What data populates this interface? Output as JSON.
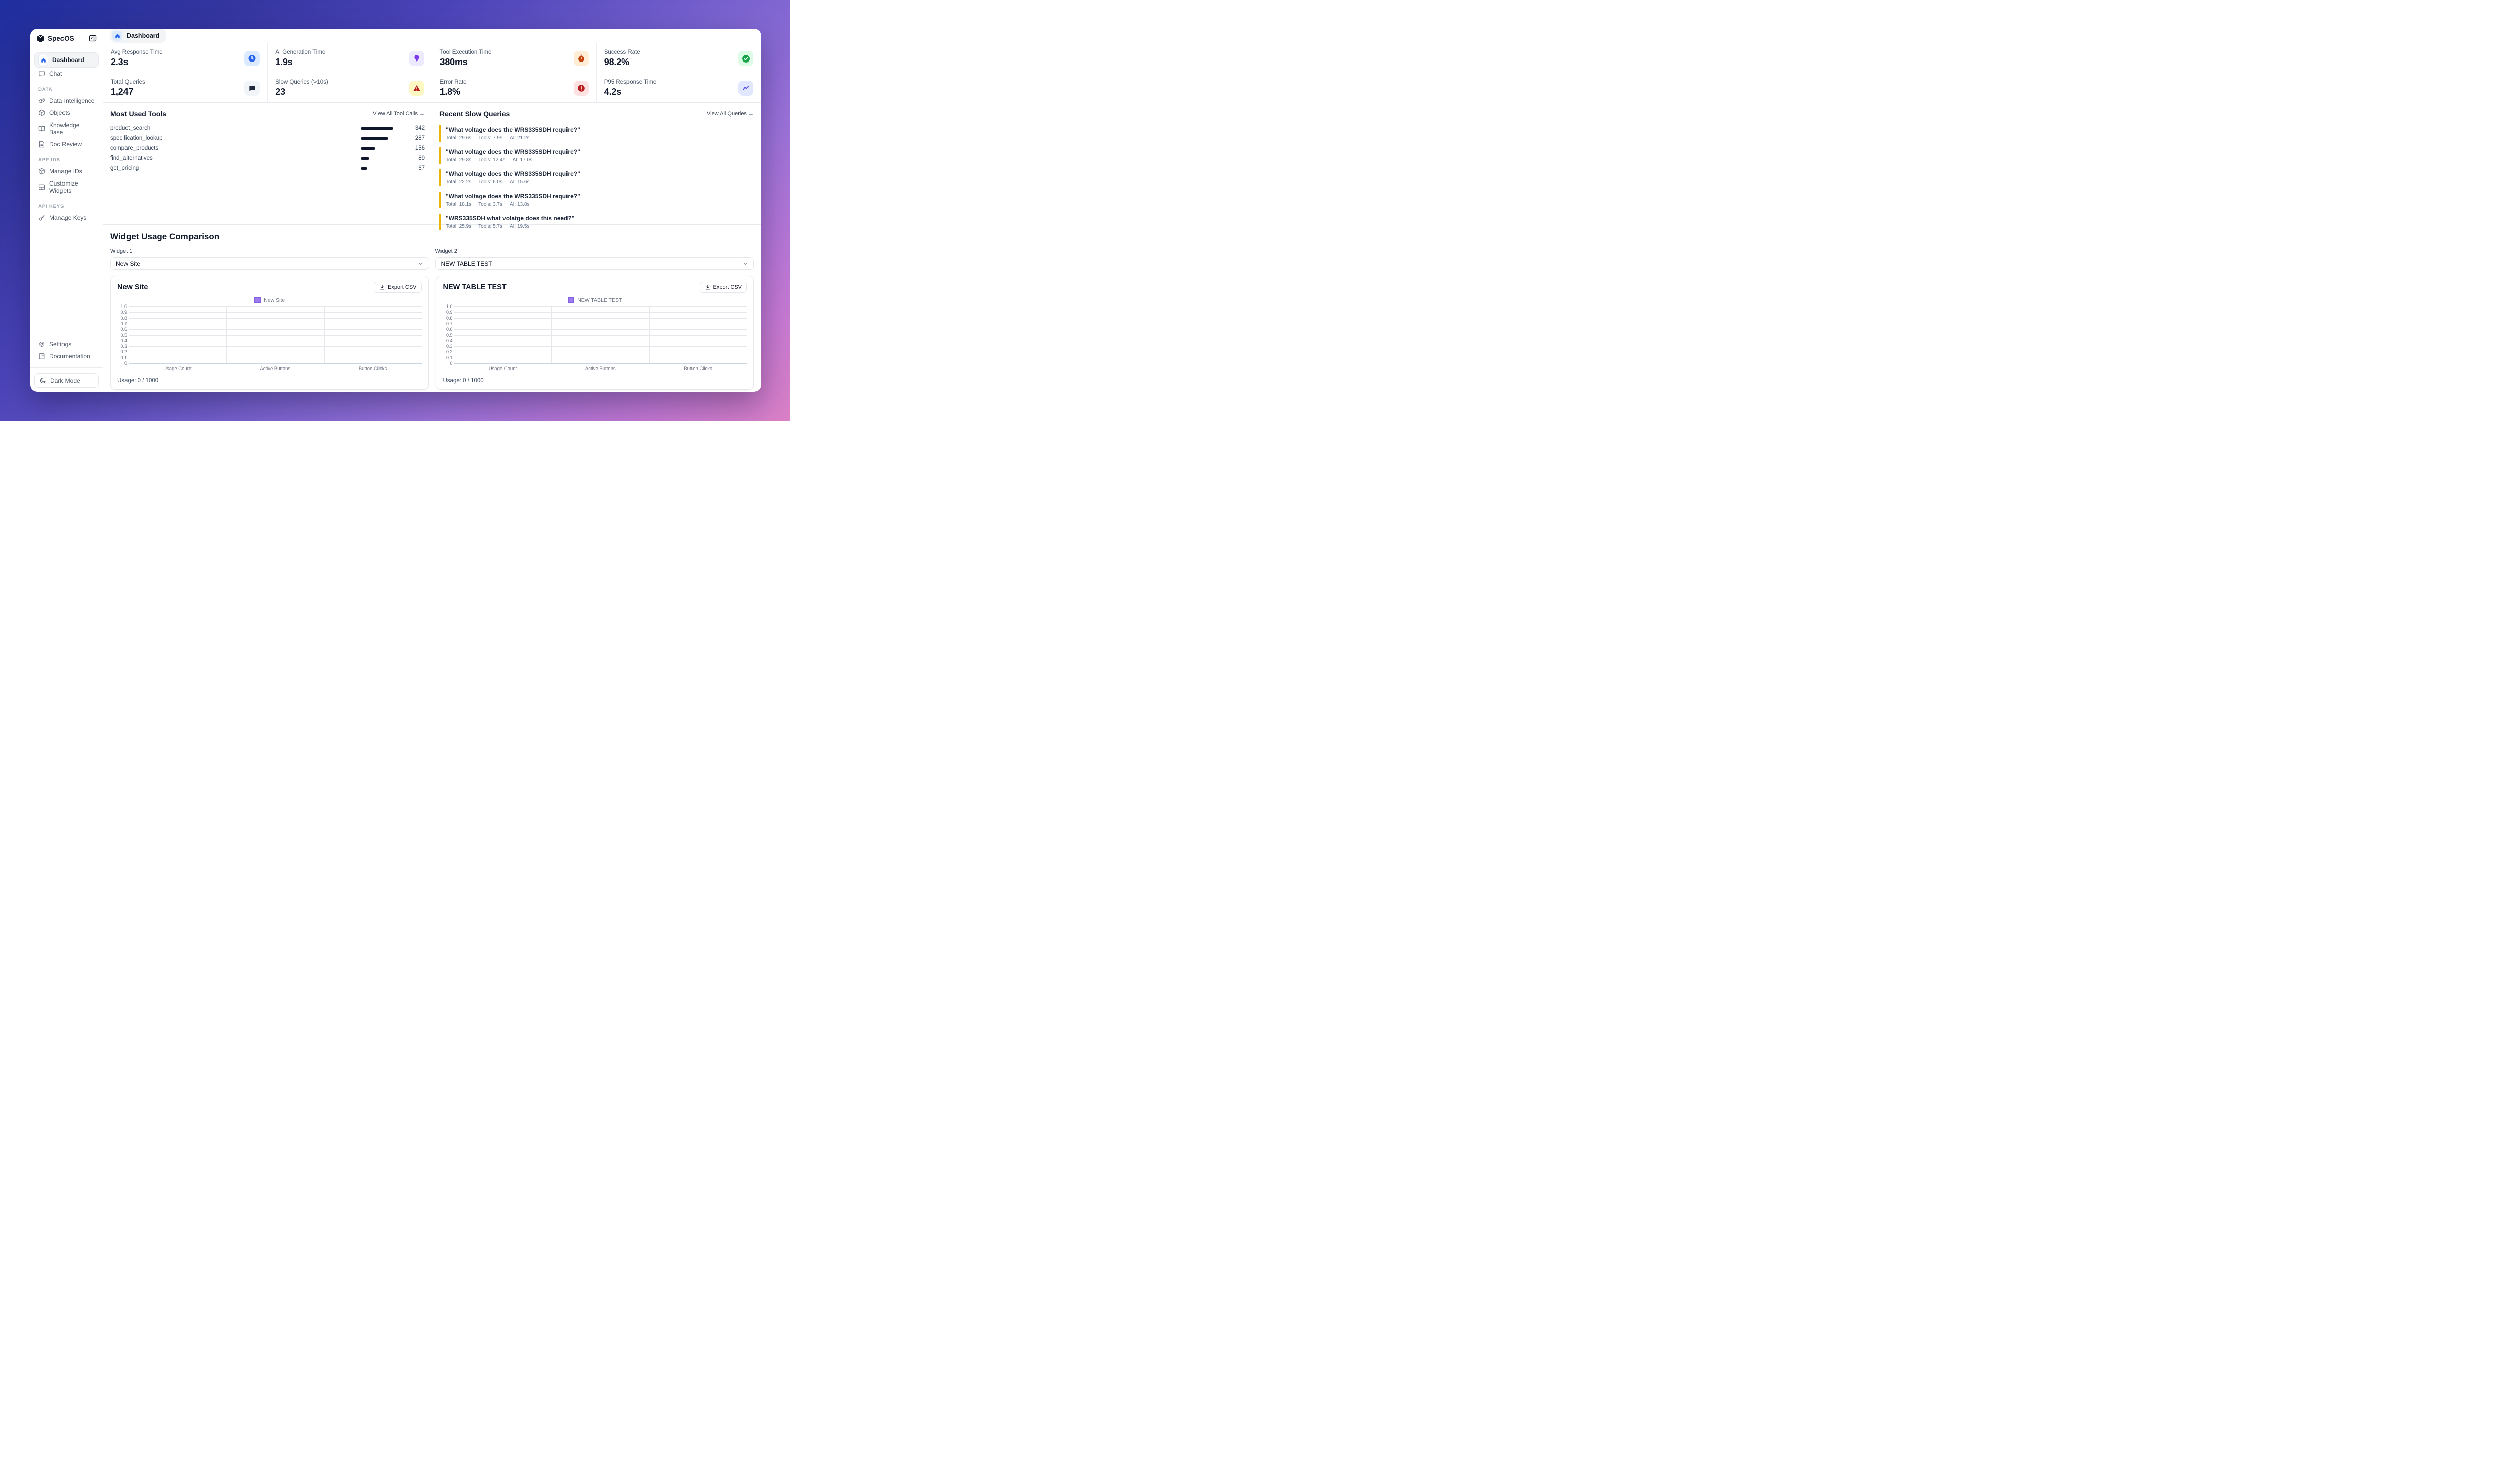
{
  "app": {
    "name": "SpecOS"
  },
  "header": {
    "breadcrumb": "Dashboard"
  },
  "sidebar": {
    "nav": [
      {
        "label": "Dashboard",
        "active": true
      },
      {
        "label": "Chat",
        "active": false
      }
    ],
    "sections": [
      {
        "title": "DATA",
        "items": [
          {
            "label": "Data Intelligence"
          },
          {
            "label": "Objects"
          },
          {
            "label": "Knowledge Base"
          },
          {
            "label": "Doc Review"
          }
        ]
      },
      {
        "title": "APP IDS",
        "items": [
          {
            "label": "Manage IDs"
          },
          {
            "label": "Customize Widgets"
          }
        ]
      },
      {
        "title": "API KEYS",
        "items": [
          {
            "label": "Manage Keys"
          }
        ]
      }
    ],
    "footer_items": [
      {
        "label": "Settings"
      },
      {
        "label": "Documentation"
      }
    ],
    "dark_mode_label": "Dark Mode"
  },
  "metrics": [
    {
      "label": "Avg Response Time",
      "value": "2.3s",
      "icon": "clock",
      "icon_bg": "#dbeafe",
      "icon_color": "#2563eb"
    },
    {
      "label": "AI Generation Time",
      "value": "1.9s",
      "icon": "lightbulb",
      "icon_bg": "#ede9fe",
      "icon_color": "#7c3aed"
    },
    {
      "label": "Tool Execution Time",
      "value": "380ms",
      "icon": "stopwatch",
      "icon_bg": "#ffedd5",
      "icon_color": "#c2410c"
    },
    {
      "label": "Success Rate",
      "value": "98.2%",
      "icon": "check-circle",
      "icon_bg": "#dcfce7",
      "icon_color": "#16a34a"
    },
    {
      "label": "Total Queries",
      "value": "1,247",
      "icon": "chat-bubble",
      "icon_bg": "#f1f5f9",
      "icon_color": "#1e293b"
    },
    {
      "label": "Slow Queries (>10s)",
      "value": "23",
      "icon": "warning-triangle",
      "icon_bg": "#fef9c3",
      "icon_color": "#b91c1c"
    },
    {
      "label": "Error Rate",
      "value": "1.8%",
      "icon": "error-circle",
      "icon_bg": "#fee2e2",
      "icon_color": "#b91c1c"
    },
    {
      "label": "P95 Response Time",
      "value": "4.2s",
      "icon": "trend-line",
      "icon_bg": "#e0e7ff",
      "icon_color": "#4f46e5"
    }
  ],
  "tools": {
    "title": "Most Used Tools",
    "link": "View All Tool Calls →",
    "items": [
      {
        "name": "product_search",
        "count": 342
      },
      {
        "name": "specification_lookup",
        "count": 287
      },
      {
        "name": "compare_products",
        "count": 156
      },
      {
        "name": "find_alternatives",
        "count": 89
      },
      {
        "name": "get_pricing",
        "count": 67
      }
    ],
    "bar_color": "#0f172a"
  },
  "slow_queries": {
    "title": "Recent Slow Queries",
    "link": "View All Queries →",
    "accent_color": "#eab308",
    "meta_labels": {
      "total": "Total:",
      "tools": "Tools:",
      "ai": "AI:"
    },
    "items": [
      {
        "text": "\"What voltage does the WRS335SDH require?\"",
        "total": "29.6s",
        "tools": "7.9s",
        "ai": "21.2s"
      },
      {
        "text": "\"What voltage does the WRS335SDH require?\"",
        "total": "29.8s",
        "tools": "12.4s",
        "ai": "17.0s"
      },
      {
        "text": "\"What voltage does the WRS335SDH require?\"",
        "total": "22.2s",
        "tools": "6.0s",
        "ai": "15.6s"
      },
      {
        "text": "\"What voltage does the WRS335SDH require?\"",
        "total": "18.1s",
        "tools": "3.7s",
        "ai": "13.8s"
      },
      {
        "text": "\"WRS335SDH what volatge does this need?\"",
        "total": "25.9s",
        "tools": "5.7s",
        "ai": "19.5s"
      }
    ]
  },
  "comparison": {
    "title": "Widget Usage Comparison",
    "export_label": "Export CSV",
    "widgets": [
      {
        "label": "Widget 1",
        "selected": "New Site"
      },
      {
        "label": "Widget 2",
        "selected": "NEW TABLE TEST"
      }
    ]
  },
  "chart_data": [
    {
      "type": "bar",
      "title": "New Site",
      "categories": [
        "Usage Count",
        "Active Buttons",
        "Button Clicks"
      ],
      "series": [
        {
          "name": "New Site",
          "values": [
            0,
            0,
            0
          ]
        }
      ],
      "ylim": [
        0,
        1
      ],
      "ytick_labels": [
        "1.0",
        "0.9",
        "0.8",
        "0.7",
        "0.6",
        "0.5",
        "0.4",
        "0.3",
        "0.2",
        "0.1",
        "0"
      ],
      "grid": true,
      "legend_position": "top",
      "series_color": "#8b5cf6",
      "usage_text": "Usage: 0 / 1000",
      "usage_used": 0,
      "usage_limit": 1000
    },
    {
      "type": "bar",
      "title": "NEW TABLE TEST",
      "categories": [
        "Usage Count",
        "Active Buttons",
        "Button Clicks"
      ],
      "series": [
        {
          "name": "NEW TABLE TEST",
          "values": [
            0,
            0,
            0
          ]
        }
      ],
      "ylim": [
        0,
        1
      ],
      "ytick_labels": [
        "1.0",
        "0.9",
        "0.8",
        "0.7",
        "0.6",
        "0.5",
        "0.4",
        "0.3",
        "0.2",
        "0.1",
        "0"
      ],
      "grid": true,
      "legend_position": "top",
      "series_color": "#8b5cf6",
      "usage_text": "Usage: 0 / 1000",
      "usage_used": 0,
      "usage_limit": 1000
    }
  ],
  "colors": {
    "background_gradient_start": "#1f2e9e",
    "background_gradient_end": "#da80c6",
    "panel": "#ffffff",
    "accent_blue": "#2563eb",
    "query_accent": "#eab308",
    "chart_series": "#8b5cf6"
  }
}
